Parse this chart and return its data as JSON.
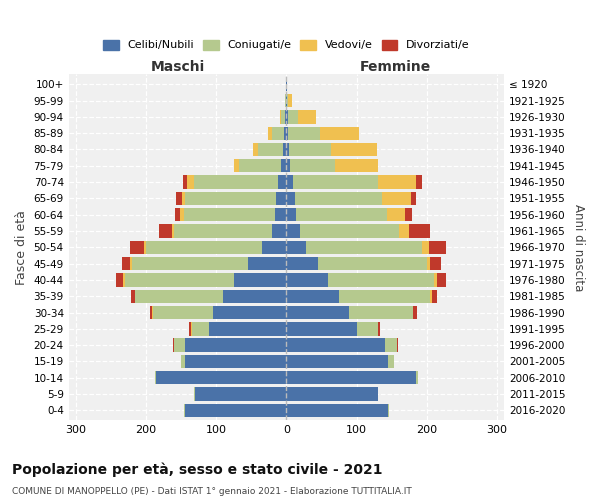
{
  "age_groups": [
    "0-4",
    "5-9",
    "10-14",
    "15-19",
    "20-24",
    "25-29",
    "30-34",
    "35-39",
    "40-44",
    "45-49",
    "50-54",
    "55-59",
    "60-64",
    "65-69",
    "70-74",
    "75-79",
    "80-84",
    "85-89",
    "90-94",
    "95-99",
    "100+"
  ],
  "birth_years": [
    "2016-2020",
    "2011-2015",
    "2006-2010",
    "2001-2005",
    "1996-2000",
    "1991-1995",
    "1986-1990",
    "1981-1985",
    "1976-1980",
    "1971-1975",
    "1966-1970",
    "1961-1965",
    "1956-1960",
    "1951-1955",
    "1946-1950",
    "1941-1945",
    "1936-1940",
    "1931-1935",
    "1926-1930",
    "1921-1925",
    "≤ 1920"
  ],
  "maschi": {
    "celibi": [
      145,
      130,
      185,
      145,
      145,
      110,
      105,
      90,
      75,
      55,
      35,
      20,
      16,
      14,
      12,
      7,
      5,
      3,
      2,
      1,
      1
    ],
    "coniugati": [
      1,
      1,
      2,
      5,
      15,
      25,
      85,
      125,
      155,
      165,
      165,
      140,
      130,
      130,
      120,
      60,
      35,
      18,
      5,
      1,
      0
    ],
    "vedovi": [
      0,
      0,
      0,
      0,
      0,
      1,
      1,
      1,
      2,
      2,
      3,
      3,
      5,
      5,
      10,
      8,
      8,
      5,
      2,
      0,
      0
    ],
    "divorziati": [
      0,
      0,
      0,
      0,
      1,
      2,
      3,
      5,
      10,
      12,
      20,
      18,
      8,
      8,
      5,
      0,
      0,
      0,
      0,
      0,
      0
    ]
  },
  "femmine": {
    "nubili": [
      145,
      130,
      185,
      145,
      140,
      100,
      90,
      75,
      60,
      45,
      28,
      20,
      14,
      12,
      10,
      5,
      4,
      3,
      2,
      1,
      1
    ],
    "coniugate": [
      1,
      1,
      2,
      8,
      18,
      30,
      90,
      130,
      150,
      155,
      165,
      140,
      130,
      125,
      120,
      65,
      60,
      45,
      15,
      2,
      0
    ],
    "vedove": [
      0,
      0,
      0,
      0,
      0,
      1,
      1,
      2,
      5,
      5,
      10,
      15,
      25,
      40,
      55,
      60,
      65,
      55,
      25,
      5,
      0
    ],
    "divorziate": [
      0,
      0,
      0,
      0,
      1,
      2,
      5,
      8,
      12,
      15,
      25,
      30,
      10,
      8,
      8,
      0,
      0,
      0,
      0,
      0,
      0
    ]
  },
  "colors": {
    "celibi": "#4a72a8",
    "coniugati": "#b5c98e",
    "vedovi": "#f0c050",
    "divorziati": "#c0392b"
  },
  "xlim": 310,
  "title": "Popolazione per età, sesso e stato civile - 2021",
  "subtitle": "COMUNE DI MANOPPELLO (PE) - Dati ISTAT 1° gennaio 2021 - Elaborazione TUTTITALIA.IT",
  "ylabel": "Fasce di età",
  "ylabel_right": "Anni di nascita",
  "legend_labels": [
    "Celibi/Nubili",
    "Coniugati/e",
    "Vedovi/e",
    "Divorziati/e"
  ],
  "background_color": "#f0f0f0"
}
